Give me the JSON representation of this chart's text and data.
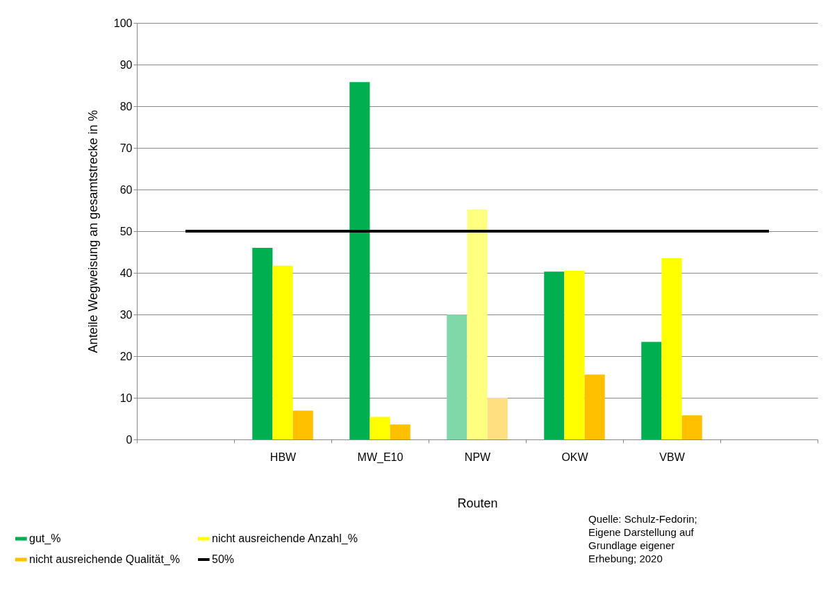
{
  "chart_data": {
    "type": "bar",
    "xlabel": "Routen",
    "ylabel": "Anteile Wegweisung  an gesamtstrecke in %",
    "categories": [
      null,
      "HBW",
      "MW_E10",
      "NPW",
      "OKW",
      "VBW",
      null
    ],
    "series": [
      {
        "name": "gut_%",
        "color": "#00b050",
        "colors": [
          null,
          "#00b050",
          "#00b050",
          "#80d7a7",
          "#00b050",
          "#00b050",
          null
        ],
        "values": [
          null,
          46,
          85.8,
          30,
          40.3,
          23.4,
          null
        ]
      },
      {
        "name": "nicht ausreichende Anzahl_%",
        "color": "#ffff00",
        "colors": [
          null,
          "#ffff00",
          "#ffff00",
          "#ffff80",
          "#ffff00",
          "#ffff00",
          null
        ],
        "values": [
          null,
          41.7,
          5.4,
          55.2,
          40.5,
          43.5,
          null
        ]
      },
      {
        "name": "nicht ausreichende Qualität_%",
        "color": "#ffc000",
        "colors": [
          null,
          "#ffc000",
          "#ffc000",
          "#ffdf80",
          "#ffc000",
          "#ffc000",
          null
        ],
        "values": [
          null,
          6.9,
          3.6,
          10,
          15.6,
          5.8,
          null
        ]
      },
      {
        "name": "50%",
        "type": "line",
        "color": "#000000",
        "values": [
          50,
          50,
          50,
          50,
          50,
          50,
          50
        ]
      }
    ],
    "ylim": [
      0,
      100
    ],
    "yticks": [
      0,
      10,
      20,
      30,
      40,
      50,
      60,
      70,
      80,
      90,
      100
    ],
    "grid": "y",
    "legend": "bottom",
    "marker": "none",
    "line_style": "solid",
    "annotations": [
      "Quelle: Schulz-Fedorin; Eigene Darstellung auf Grundlage eigener Erhebung; 2020"
    ]
  }
}
